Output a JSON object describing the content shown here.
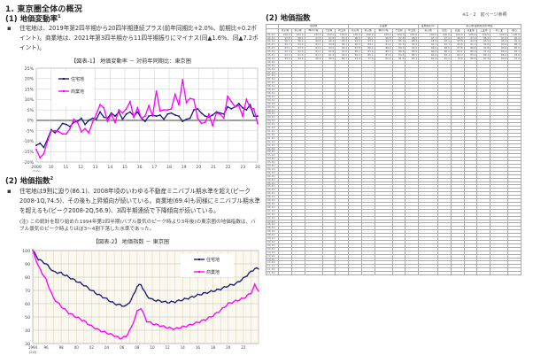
{
  "section": {
    "title": "1. 東京圏全体の概況"
  },
  "sub1": {
    "title": "(1) 地価変動率",
    "footnote_mark": "1",
    "paragraph": "住宅地は、2019年第2四半期から20四半期連続プラス(前年同期比+2.0%、前期比+0.2ポイント)。商業地は、2021年第3四半期から11四半期振りにマイナス(同▲1.6%、同▲7.2ポイント)。"
  },
  "sub2": {
    "title": "(2) 地価指数",
    "footnote_mark": "2",
    "paragraph": "住宅地は9割に迫り(86.1)、2008年頃のいわゆる不動産ミニバブル期水準を超え(ピーク2008-1Q,74.5)、その後も上昇傾向が続いている。商業地(69.4)も同様にミニバブル期水準を超えるも(ピーク2008-2Q,56.9)、3四半期連続で下降傾向が続いている。",
    "note_label": "(注)",
    "note": "この統計を取り始めた1994年第2四半期(バブル景気のピーク時より3年後)の東京圏の地価指数は、バブル景気のピーク時よりほぼ3～4割下落した水準であった。"
  },
  "right_panel": {
    "title": "(2) 地価指数",
    "note": "※1・2　前ページ参照",
    "table": {
      "group_headers": [
        "住宅地",
        "商業地",
        "業務用途(※)",
        "東京圏(業務用途別)地区"
      ],
      "columns": [
        "",
        "東京圏",
        "東京都",
        "神奈川県",
        "千葉県",
        "埼玉県",
        "東京圏",
        "東京都",
        "神奈川県",
        "千葉県",
        "埼玉県",
        "東京圏",
        "住宅",
        "商業",
        "商業用",
        "工業用",
        "準工業",
        "都心"
      ],
      "rows": [
        [
          "94-2Q",
          "100.0",
          "100.0",
          "100.0",
          "100.0",
          "100.0",
          "100.0",
          "100.0",
          "100.0",
          "100.0",
          "100.0",
          "100.0",
          "100.0",
          "100.0",
          "100.0",
          "100.0",
          "100.0",
          "100.0"
        ],
        [
          "94-3Q",
          "97.8",
          "98.4",
          "97.5",
          "97.6",
          "97.4",
          "96.9",
          "96.1",
          "96.8",
          "97.8",
          "98.5",
          "97.1",
          "97.0",
          "96.8",
          "97.2",
          "98.3",
          "97.6",
          "95.9"
        ],
        [
          "94-4Q",
          "96.1",
          "96.4",
          "96.7",
          "96.1",
          "95.3",
          "94.0",
          "93.2",
          "94.3",
          "95.0",
          "96.2",
          "94.5",
          "94.1",
          "93.8",
          "94.3",
          "96.5",
          "95.2",
          "92.4"
        ],
        [
          "95-1Q",
          "94.7",
          "94.9",
          "95.1",
          "94.8",
          "94.1",
          "90.3",
          "89.1",
          "91.2",
          "91.5",
          "93.4",
          "91.7",
          "91.3",
          "90.8",
          "91.1",
          "94.6",
          "93.0",
          "88.3"
        ],
        [
          "95-2Q",
          "93.1",
          "93.5",
          "93.3",
          "93.0",
          "92.4",
          "87.8",
          "86.4",
          "88.6",
          "89.2",
          "91.0",
          "89.0",
          "88.5",
          "87.6",
          "88.5",
          "92.8",
          "90.6",
          "85.0"
        ],
        [
          "95-3Q",
          "92.4",
          "92.6",
          "92.7",
          "92.6",
          "91.6",
          "85.2",
          "83.6",
          "86.3",
          "86.8",
          "88.5",
          "86.6",
          "86.2",
          "85.1",
          "85.9",
          "91.0",
          "88.4",
          "82.1"
        ],
        [
          "95-4Q",
          "91.2",
          "91.5",
          "91.3",
          "91.5",
          "90.2",
          "82.0",
          "80.1",
          "83.5",
          "83.8",
          "85.7",
          "84.0",
          "83.4",
          "82.3",
          "83.0",
          "89.1",
          "86.0",
          "78.6"
        ],
        [
          "96-1Q",
          "90.5",
          "90.6",
          "90.9",
          "90.5",
          "89.7",
          "79.4",
          "77.3",
          "81.0",
          "81.5",
          "83.1",
          "81.6",
          "81.1",
          "79.6",
          "80.5",
          "87.4",
          "83.9",
          "75.2"
        ]
      ],
      "body_row_count": 70
    }
  },
  "chart_data": [
    {
      "type": "line",
      "title": "【図表-1】 地価変動率 － 対前年同期比：東京圏",
      "xlabel": "",
      "ylabel": "",
      "x_tick_labels": [
        "2009\n(1Q)",
        "10",
        "11",
        "12",
        "13",
        "14",
        "15",
        "16",
        "17",
        "18",
        "19",
        "20",
        "21",
        "22",
        "23",
        "24"
      ],
      "y_tick_labels": [
        "25%",
        "20%",
        "15%",
        "10%",
        "5%",
        "0%",
        "-5%",
        "-10%",
        "-15%",
        "-20%"
      ],
      "ylim": [
        -20,
        25
      ],
      "grid": true,
      "legend_position": "upper-left",
      "series": [
        {
          "name": "住宅地",
          "color": "#1a1a7a",
          "values": [
            -12,
            -11,
            -13,
            -9,
            -4.5,
            -6,
            -4,
            -1.5,
            -2,
            -3,
            -1,
            -0.5,
            1,
            -2,
            0,
            1,
            0.5,
            4,
            1.5,
            1,
            3.5,
            2,
            4,
            0.5,
            3,
            4,
            2,
            4,
            1,
            -0.5,
            2,
            2.5,
            2,
            2.5,
            0.5,
            3,
            3.5,
            2.5,
            2,
            -0.5,
            0.5,
            1,
            5,
            5.5,
            3.5,
            2,
            1.5,
            2.5,
            4,
            3.5,
            3,
            6.5,
            5.5,
            6.5,
            8,
            6,
            5,
            7.5,
            2,
            2
          ]
        },
        {
          "name": "商業地",
          "color": "#ff00ff",
          "values": [
            -14,
            -18,
            -16,
            -10,
            -5,
            -5,
            -5.5,
            -6.5,
            -6.5,
            -4,
            0.5,
            -1,
            -5.5,
            -4,
            -6,
            -1,
            3,
            7.5,
            6,
            -0.5,
            3,
            -1,
            5,
            3.5,
            5.5,
            9,
            1.5,
            6,
            1,
            2,
            7,
            2,
            14,
            4.5,
            5,
            5,
            5.5,
            12.5,
            7.5,
            19.5,
            8.5,
            10.5,
            10,
            1,
            -1.5,
            -1,
            3,
            -2.5,
            3.5,
            3,
            1,
            11.5,
            9,
            6.5,
            7,
            2,
            10,
            6,
            5.5,
            -1.6
          ]
        }
      ]
    },
    {
      "type": "line",
      "title": "【図表-2】 地価指数 － 東京圏",
      "xlabel": "",
      "ylabel": "",
      "x_tick_labels": [
        "1994\n(2Q)",
        "96",
        "98",
        "00",
        "02",
        "04",
        "06",
        "08",
        "10",
        "12",
        "14",
        "16",
        "18",
        "20",
        "22"
      ],
      "y_tick_labels": [
        "100",
        "90",
        "80",
        "70",
        "60",
        "50",
        "40",
        "30"
      ],
      "ylim": [
        30,
        100
      ],
      "grid": true,
      "legend_position": "upper-right",
      "series": [
        {
          "name": "住宅地",
          "color": "#1a1a7a",
          "x_years": [
            1994.25,
            1995,
            1996,
            1997,
            1998,
            1999,
            2000,
            2001,
            2002,
            2003,
            2004,
            2005,
            2005.75,
            2006.5,
            2007.25,
            2008,
            2008.5,
            2009.25,
            2010,
            2011,
            2012,
            2013,
            2014,
            2015,
            2016,
            2017,
            2018,
            2019,
            2020,
            2021,
            2022,
            2023,
            2023.5,
            2024
          ],
          "values": [
            100,
            93.5,
            90,
            84,
            83,
            80,
            77,
            74,
            70,
            66.5,
            63.5,
            60,
            59,
            58,
            63,
            73,
            74.5,
            66,
            63,
            62,
            61,
            61.5,
            63,
            64.5,
            66.5,
            68,
            69.5,
            71,
            73.5,
            75,
            79,
            84,
            86.5,
            86.1
          ]
        },
        {
          "name": "商業地",
          "color": "#ff00ff",
          "values": [
            100,
            88,
            78,
            64,
            58,
            53,
            50,
            47,
            43,
            40,
            38,
            36,
            34,
            35,
            42,
            54,
            56.9,
            47,
            45,
            43.5,
            42,
            41,
            42.5,
            44,
            46,
            48,
            51,
            55,
            60,
            62,
            64,
            68,
            74,
            69.4
          ],
          "x_years": [
            1994.25,
            1995,
            1996,
            1997,
            1998,
            1999,
            2000,
            2001,
            2002,
            2003,
            2004,
            2005,
            2005.75,
            2006.5,
            2007.25,
            2008,
            2008.5,
            2009.25,
            2010,
            2011,
            2012,
            2013,
            2014,
            2015,
            2016,
            2017,
            2018,
            2019,
            2020,
            2021,
            2022,
            2023,
            2023.5,
            2024
          ]
        }
      ]
    }
  ]
}
